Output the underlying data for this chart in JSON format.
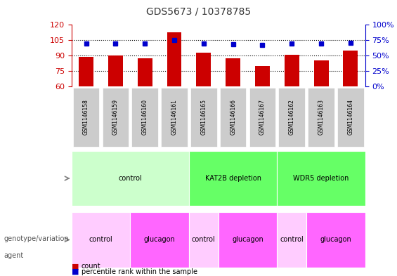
{
  "title": "GDS5673 / 10378785",
  "samples": [
    "GSM1146158",
    "GSM1146159",
    "GSM1146160",
    "GSM1146161",
    "GSM1146165",
    "GSM1146166",
    "GSM1146167",
    "GSM1146162",
    "GSM1146163",
    "GSM1146164"
  ],
  "counts": [
    89,
    90,
    87,
    113,
    93,
    87,
    80,
    91,
    85,
    95
  ],
  "percentile_values": [
    70,
    70,
    69,
    75,
    69,
    68,
    67,
    70,
    69,
    71
  ],
  "ylim": [
    60,
    120
  ],
  "y2lim": [
    0,
    100
  ],
  "yticks": [
    60,
    75,
    90,
    105,
    120
  ],
  "y2ticks": [
    0,
    25,
    50,
    75,
    100
  ],
  "bar_color": "#cc0000",
  "percentile_color": "#0000cc",
  "bar_width": 0.5,
  "genotype_groups": [
    {
      "label": "control",
      "start": 0,
      "end": 4,
      "color": "#ccffcc"
    },
    {
      "label": "KAT2B depletion",
      "start": 4,
      "end": 7,
      "color": "#66ff66"
    },
    {
      "label": "WDR5 depletion",
      "start": 7,
      "end": 10,
      "color": "#66ff66"
    }
  ],
  "agent_groups": [
    {
      "label": "control",
      "start": 0,
      "end": 2,
      "color": "#ffffff"
    },
    {
      "label": "glucagon",
      "start": 2,
      "end": 4,
      "color": "#ff66ff"
    },
    {
      "label": "control",
      "start": 4,
      "end": 5,
      "color": "#ffffff"
    },
    {
      "label": "glucagon",
      "start": 5,
      "end": 7,
      "color": "#ff66ff"
    },
    {
      "label": "control",
      "start": 7,
      "end": 8,
      "color": "#ffffff"
    },
    {
      "label": "glucagon",
      "start": 8,
      "end": 10,
      "color": "#ff66ff"
    }
  ],
  "grid_color": "#000000",
  "grid_linestyle": "dotted",
  "sample_bg_color": "#cccccc",
  "xlabel_color": "#333333",
  "title_color": "#333333",
  "left_axis_color": "#cc0000",
  "right_axis_color": "#0000cc"
}
